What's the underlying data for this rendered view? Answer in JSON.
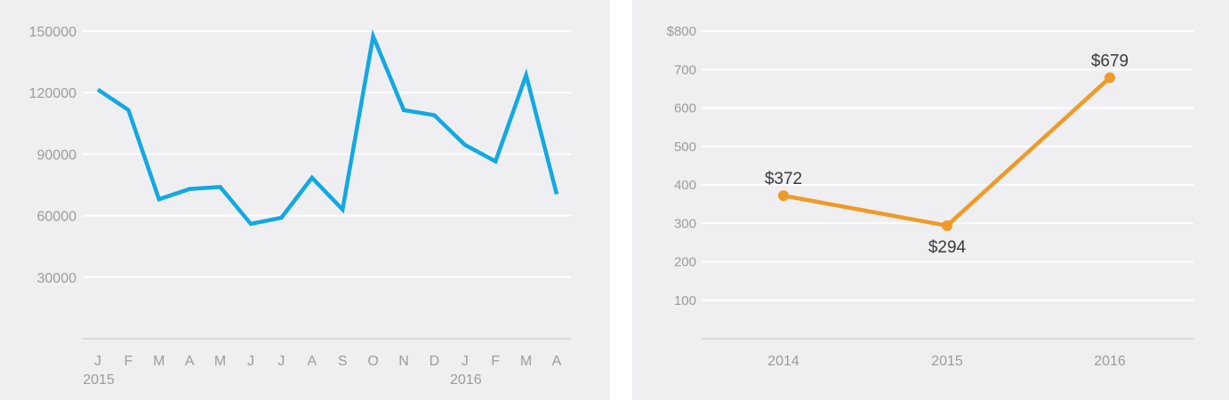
{
  "chart_data": [
    {
      "type": "line",
      "x": [
        "J",
        "F",
        "M",
        "A",
        "M",
        "J",
        "J",
        "A",
        "S",
        "O",
        "N",
        "D",
        "J",
        "F",
        "M",
        "A"
      ],
      "year_labels": [
        {
          "index": 0,
          "label": "2015"
        },
        {
          "index": 12,
          "label": "2016"
        }
      ],
      "series": [
        {
          "values": [
            121500,
            111500,
            68000,
            73000,
            74000,
            56000,
            59000,
            78500,
            63000,
            147500,
            111500,
            109000,
            94500,
            86500,
            128500,
            70500
          ]
        }
      ],
      "yticks": [
        "30000",
        "60000",
        "90000",
        "120000",
        "150000"
      ],
      "ytick_values": [
        30000,
        60000,
        90000,
        120000,
        150000
      ],
      "ylim": [
        0,
        150000
      ],
      "grid": true,
      "colors": {
        "line": "#12a8e3",
        "grid": "#ffffff",
        "background": "#efeff1",
        "axis": "#d0d0d4"
      }
    },
    {
      "type": "line",
      "categories": [
        "2014",
        "2015",
        "2016"
      ],
      "series": [
        {
          "values": [
            372,
            294,
            679
          ],
          "data_labels": [
            "$372",
            "$294",
            "$679"
          ]
        }
      ],
      "yticks": [
        "100",
        "200",
        "300",
        "400",
        "500",
        "600",
        "700",
        "$800"
      ],
      "ytick_values": [
        100,
        200,
        300,
        400,
        500,
        600,
        700,
        800
      ],
      "ylim": [
        0,
        800
      ],
      "grid": true,
      "colors": {
        "line": "#f09a28",
        "grid": "#ffffff",
        "background": "#efeff1",
        "axis": "#d0d0d4"
      }
    }
  ]
}
